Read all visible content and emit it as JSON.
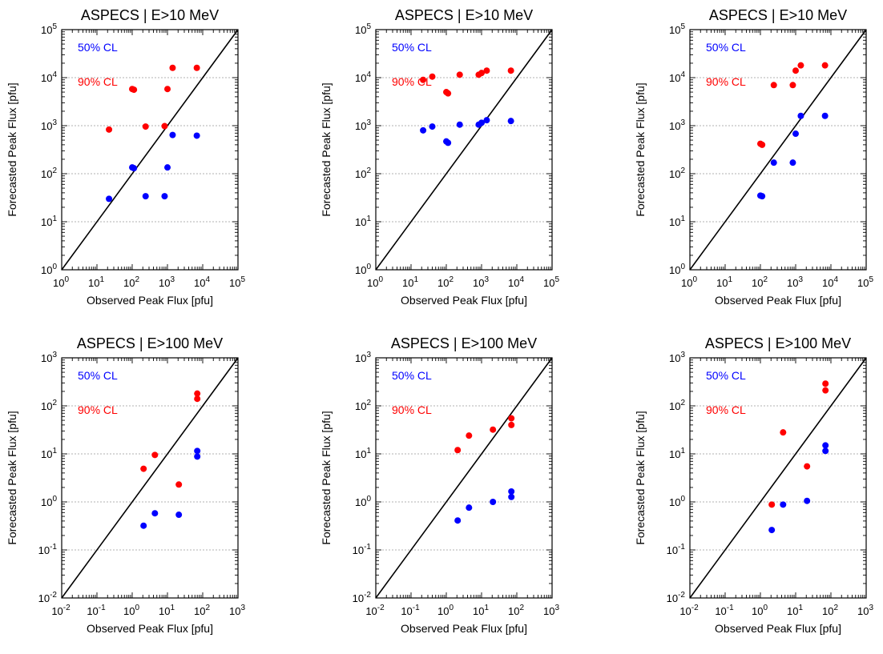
{
  "colors": {
    "cl50": "#0000ff",
    "cl90": "#ff0000",
    "grid": "#999999",
    "axis": "#000000"
  },
  "chart_data": [
    {
      "type": "scatter",
      "title": "ASPECS | E>10 MeV",
      "xlabel": "Observed Peak Flux [pfu]",
      "ylabel": "Forecasted Peak Flux [pfu]",
      "xscale": "log",
      "yscale": "log",
      "xlim": [
        1,
        100000
      ],
      "ylim": [
        1,
        100000
      ],
      "x_ticks": [
        {
          "label": "10",
          "sup": "0"
        },
        {
          "label": "10",
          "sup": "1"
        },
        {
          "label": "10",
          "sup": "2"
        },
        {
          "label": "10",
          "sup": "3"
        },
        {
          "label": "10",
          "sup": "4"
        },
        {
          "label": "10",
          "sup": "5"
        }
      ],
      "y_ticks": [
        {
          "label": "10",
          "sup": "0"
        },
        {
          "label": "10",
          "sup": "1"
        },
        {
          "label": "10",
          "sup": "2"
        },
        {
          "label": "10",
          "sup": "3"
        },
        {
          "label": "10",
          "sup": "4"
        },
        {
          "label": "10",
          "sup": "5"
        }
      ],
      "grid": "horizontal-dotted",
      "diagonal": "y=x",
      "legend_placement": "top-left",
      "series": [
        {
          "name": "50% CL",
          "color": "#0000ff",
          "points": [
            [
              22,
              30
            ],
            [
              100,
              135
            ],
            [
              112,
              130
            ],
            [
              240,
              34
            ],
            [
              830,
              34
            ],
            [
              1000,
              135
            ],
            [
              1400,
              640
            ],
            [
              6800,
              620
            ]
          ]
        },
        {
          "name": "90% CL",
          "color": "#ff0000",
          "points": [
            [
              22,
              830
            ],
            [
              100,
              5800
            ],
            [
              112,
              5600
            ],
            [
              240,
              960
            ],
            [
              830,
              980
            ],
            [
              1000,
              5800
            ],
            [
              1400,
              16000
            ],
            [
              6800,
              16000
            ]
          ]
        }
      ]
    },
    {
      "type": "scatter",
      "title": "ASPECS | E>10 MeV",
      "xlabel": "Observed Peak Flux [pfu]",
      "ylabel": "Forecasted Peak Flux [pfu]",
      "xscale": "log",
      "yscale": "log",
      "xlim": [
        1,
        100000
      ],
      "ylim": [
        1,
        100000
      ],
      "x_ticks": [
        {
          "label": "10",
          "sup": "0"
        },
        {
          "label": "10",
          "sup": "1"
        },
        {
          "label": "10",
          "sup": "2"
        },
        {
          "label": "10",
          "sup": "3"
        },
        {
          "label": "10",
          "sup": "4"
        },
        {
          "label": "10",
          "sup": "5"
        }
      ],
      "y_ticks": [
        {
          "label": "10",
          "sup": "0"
        },
        {
          "label": "10",
          "sup": "1"
        },
        {
          "label": "10",
          "sup": "2"
        },
        {
          "label": "10",
          "sup": "3"
        },
        {
          "label": "10",
          "sup": "4"
        },
        {
          "label": "10",
          "sup": "5"
        }
      ],
      "grid": "horizontal-dotted",
      "diagonal": "y=x",
      "legend_placement": "top-left",
      "series": [
        {
          "name": "50% CL",
          "color": "#0000ff",
          "points": [
            [
              22,
              800
            ],
            [
              40,
              960
            ],
            [
              100,
              470
            ],
            [
              112,
              440
            ],
            [
              240,
              1050
            ],
            [
              830,
              1050
            ],
            [
              1000,
              1150
            ],
            [
              1400,
              1300
            ],
            [
              6800,
              1250
            ]
          ]
        },
        {
          "name": "90% CL",
          "color": "#ff0000",
          "points": [
            [
              22,
              9000
            ],
            [
              40,
              10500
            ],
            [
              100,
              5000
            ],
            [
              112,
              4700
            ],
            [
              240,
              11500
            ],
            [
              830,
              11500
            ],
            [
              1000,
              12500
            ],
            [
              1400,
              14000
            ],
            [
              6800,
              14000
            ]
          ]
        }
      ]
    },
    {
      "type": "scatter",
      "title": "ASPECS | E>10 MeV",
      "xlabel": "Observed Peak Flux [pfu]",
      "ylabel": "Forecasted Peak Flux [pfu]",
      "xscale": "log",
      "yscale": "log",
      "xlim": [
        1,
        100000
      ],
      "ylim": [
        1,
        100000
      ],
      "x_ticks": [
        {
          "label": "10",
          "sup": "0"
        },
        {
          "label": "10",
          "sup": "1"
        },
        {
          "label": "10",
          "sup": "2"
        },
        {
          "label": "10",
          "sup": "3"
        },
        {
          "label": "10",
          "sup": "4"
        },
        {
          "label": "10",
          "sup": "5"
        }
      ],
      "y_ticks": [
        {
          "label": "10",
          "sup": "0"
        },
        {
          "label": "10",
          "sup": "1"
        },
        {
          "label": "10",
          "sup": "2"
        },
        {
          "label": "10",
          "sup": "3"
        },
        {
          "label": "10",
          "sup": "4"
        },
        {
          "label": "10",
          "sup": "5"
        }
      ],
      "grid": "horizontal-dotted",
      "diagonal": "y=x",
      "legend_placement": "top-left",
      "series": [
        {
          "name": "50% CL",
          "color": "#0000ff",
          "points": [
            [
              100,
              35
            ],
            [
              112,
              34
            ],
            [
              240,
              170
            ],
            [
              830,
              170
            ],
            [
              1000,
              680
            ],
            [
              1400,
              1600
            ],
            [
              6800,
              1600
            ]
          ]
        },
        {
          "name": "90% CL",
          "color": "#ff0000",
          "points": [
            [
              100,
              420
            ],
            [
              112,
              400
            ],
            [
              240,
              7000
            ],
            [
              830,
              7000
            ],
            [
              1000,
              14000
            ],
            [
              1400,
              18000
            ],
            [
              6800,
              18000
            ]
          ]
        }
      ]
    },
    {
      "type": "scatter",
      "title": "ASPECS | E>100 MeV",
      "xlabel": "Observed Peak Flux [pfu]",
      "ylabel": "Forecasted Peak Flux [pfu]",
      "xscale": "log",
      "yscale": "log",
      "xlim": [
        0.01,
        1000
      ],
      "ylim": [
        0.01,
        1000
      ],
      "x_ticks": [
        {
          "label": "10",
          "sup": "-2"
        },
        {
          "label": "10",
          "sup": "-1"
        },
        {
          "label": "10",
          "sup": "0"
        },
        {
          "label": "10",
          "sup": "1"
        },
        {
          "label": "10",
          "sup": "2"
        },
        {
          "label": "10",
          "sup": "3"
        }
      ],
      "y_ticks": [
        {
          "label": "10",
          "sup": "-2"
        },
        {
          "label": "10",
          "sup": "-1"
        },
        {
          "label": "10",
          "sup": "0"
        },
        {
          "label": "10",
          "sup": "1"
        },
        {
          "label": "10",
          "sup": "2"
        },
        {
          "label": "10",
          "sup": "3"
        }
      ],
      "grid": "horizontal-dotted",
      "diagonal": "y=x",
      "legend_placement": "top-left",
      "series": [
        {
          "name": "50% CL",
          "color": "#0000ff",
          "points": [
            [
              2.1,
              0.32
            ],
            [
              4.4,
              0.58
            ],
            [
              21,
              0.54
            ],
            [
              70,
              11.5
            ],
            [
              70,
              8.8
            ]
          ]
        },
        {
          "name": "90% CL",
          "color": "#ff0000",
          "points": [
            [
              2.1,
              4.9
            ],
            [
              4.4,
              9.5
            ],
            [
              21,
              2.3
            ],
            [
              70,
              180
            ],
            [
              70,
              140
            ]
          ]
        }
      ]
    },
    {
      "type": "scatter",
      "title": "ASPECS | E>100 MeV",
      "xlabel": "Observed Peak Flux [pfu]",
      "ylabel": "Forecasted Peak Flux [pfu]",
      "xscale": "log",
      "yscale": "log",
      "xlim": [
        0.01,
        1000
      ],
      "ylim": [
        0.01,
        1000
      ],
      "x_ticks": [
        {
          "label": "10",
          "sup": "-2"
        },
        {
          "label": "10",
          "sup": "-1"
        },
        {
          "label": "10",
          "sup": "0"
        },
        {
          "label": "10",
          "sup": "1"
        },
        {
          "label": "10",
          "sup": "2"
        },
        {
          "label": "10",
          "sup": "3"
        }
      ],
      "y_ticks": [
        {
          "label": "10",
          "sup": "-2"
        },
        {
          "label": "10",
          "sup": "-1"
        },
        {
          "label": "10",
          "sup": "0"
        },
        {
          "label": "10",
          "sup": "1"
        },
        {
          "label": "10",
          "sup": "2"
        },
        {
          "label": "10",
          "sup": "3"
        }
      ],
      "grid": "horizontal-dotted",
      "diagonal": "y=x",
      "legend_placement": "top-left",
      "series": [
        {
          "name": "50% CL",
          "color": "#0000ff",
          "points": [
            [
              2.1,
              0.41
            ],
            [
              4.4,
              0.76
            ],
            [
              21,
              1.0
            ],
            [
              70,
              1.65
            ],
            [
              70,
              1.27
            ]
          ]
        },
        {
          "name": "90% CL",
          "color": "#ff0000",
          "points": [
            [
              2.1,
              12
            ],
            [
              4.4,
              24
            ],
            [
              21,
              32
            ],
            [
              70,
              55
            ],
            [
              70,
              40
            ]
          ]
        }
      ]
    },
    {
      "type": "scatter",
      "title": "ASPECS | E>100 MeV",
      "xlabel": "Observed Peak Flux [pfu]",
      "ylabel": "Forecasted Peak Flux [pfu]",
      "xscale": "log",
      "yscale": "log",
      "xlim": [
        0.01,
        1000
      ],
      "ylim": [
        0.01,
        1000
      ],
      "x_ticks": [
        {
          "label": "10",
          "sup": "-2"
        },
        {
          "label": "10",
          "sup": "-1"
        },
        {
          "label": "10",
          "sup": "0"
        },
        {
          "label": "10",
          "sup": "1"
        },
        {
          "label": "10",
          "sup": "2"
        },
        {
          "label": "10",
          "sup": "3"
        }
      ],
      "y_ticks": [
        {
          "label": "10",
          "sup": "-2"
        },
        {
          "label": "10",
          "sup": "-1"
        },
        {
          "label": "10",
          "sup": "0"
        },
        {
          "label": "10",
          "sup": "1"
        },
        {
          "label": "10",
          "sup": "2"
        },
        {
          "label": "10",
          "sup": "3"
        }
      ],
      "grid": "horizontal-dotted",
      "diagonal": "y=x",
      "legend_placement": "top-left",
      "series": [
        {
          "name": "50% CL",
          "color": "#0000ff",
          "points": [
            [
              2.1,
              0.26
            ],
            [
              4.4,
              0.88
            ],
            [
              21,
              1.05
            ],
            [
              70,
              15
            ],
            [
              70,
              11.5
            ]
          ]
        },
        {
          "name": "90% CL",
          "color": "#ff0000",
          "points": [
            [
              2.1,
              0.88
            ],
            [
              4.4,
              28
            ],
            [
              21,
              5.5
            ],
            [
              70,
              290
            ],
            [
              70,
              210
            ]
          ]
        }
      ]
    }
  ]
}
